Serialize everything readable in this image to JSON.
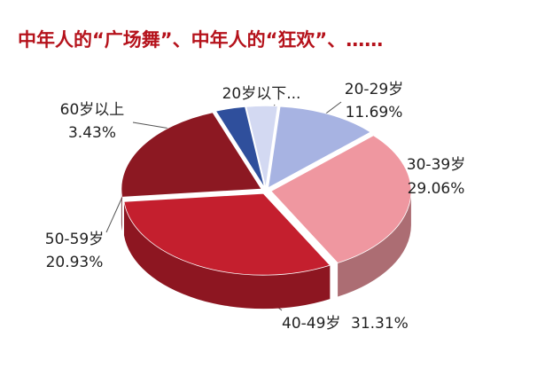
{
  "chart_data": {
    "type": "pie3d",
    "title": "中年人的“广场舞”、中年人的“狂欢”、……",
    "categories": [
      "20岁以下...",
      "20-29岁",
      "30-39岁",
      "40-49岁",
      "50-59岁",
      "60岁以上"
    ],
    "values": [
      3.58,
      11.69,
      29.06,
      31.31,
      20.93,
      3.43
    ],
    "value_labels": [
      null,
      "11.69%",
      "29.06%",
      "31.31%",
      "20.93%",
      "3.43%"
    ],
    "colors": [
      "#d3d9f2",
      "#a7b3e2",
      "#ef97a0",
      "#c41f2e",
      "#8c1822",
      "#2f4f9c"
    ]
  }
}
